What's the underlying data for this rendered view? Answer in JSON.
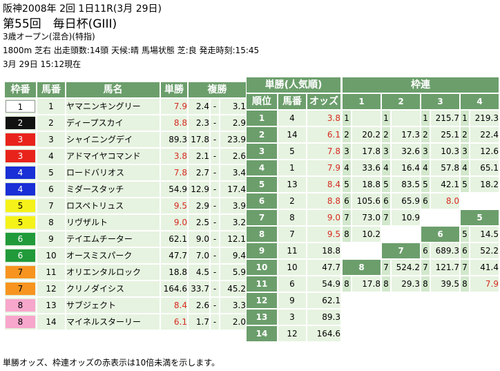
{
  "header": {
    "line1": "阪神2008年 2回 1日11R(3月 29日)",
    "line2": "第55回　毎日杯(GIII)",
    "line3": "3歳オープン(混合)(特指)",
    "line4": "1800m 芝右 出走頭数:14頭 天候:晴 馬場状態 芝:良 発走時刻:15:45",
    "line5": "3月 29日 15:12現在"
  },
  "main_table": {
    "headers": [
      "枠番",
      "馬番",
      "馬名",
      "単勝",
      "複勝"
    ],
    "rows": [
      {
        "waku": "1",
        "uma": "1",
        "name": "ヤマニンキングリー",
        "win": "7.9",
        "win_red": true,
        "plc_lo": "2.4",
        "sep": "-",
        "plc_hi": "3.1"
      },
      {
        "waku": "2",
        "uma": "2",
        "name": "ディープスカイ",
        "win": "8.8",
        "win_red": true,
        "plc_lo": "2.3",
        "sep": "-",
        "plc_hi": "2.9"
      },
      {
        "waku": "3",
        "uma": "3",
        "name": "シャイニングデイ",
        "win": "89.3",
        "win_red": false,
        "plc_lo": "17.8",
        "sep": "-",
        "plc_hi": "23.9"
      },
      {
        "waku": "3",
        "uma": "4",
        "name": "アドマイヤコマンド",
        "win": "3.8",
        "win_red": true,
        "plc_lo": "2.1",
        "sep": "-",
        "plc_hi": "2.6"
      },
      {
        "waku": "4",
        "uma": "5",
        "name": "ロードバリオス",
        "win": "7.8",
        "win_red": true,
        "plc_lo": "2.7",
        "sep": "-",
        "plc_hi": "3.4"
      },
      {
        "waku": "4",
        "uma": "6",
        "name": "ミダースタッチ",
        "win": "54.9",
        "win_red": false,
        "plc_lo": "12.9",
        "sep": "-",
        "plc_hi": "17.4"
      },
      {
        "waku": "5",
        "uma": "7",
        "name": "ロスペトリュス",
        "win": "9.5",
        "win_red": true,
        "plc_lo": "2.9",
        "sep": "-",
        "plc_hi": "3.9"
      },
      {
        "waku": "5",
        "uma": "8",
        "name": "リヴザルト",
        "win": "9.0",
        "win_red": true,
        "plc_lo": "2.5",
        "sep": "-",
        "plc_hi": "3.2"
      },
      {
        "waku": "6",
        "uma": "9",
        "name": "テイエムチーター",
        "win": "62.1",
        "win_red": false,
        "plc_lo": "9.0",
        "sep": "-",
        "plc_hi": "12.1"
      },
      {
        "waku": "6",
        "uma": "10",
        "name": "オースミスパーク",
        "win": "47.7",
        "win_red": false,
        "plc_lo": "7.0",
        "sep": "-",
        "plc_hi": "9.4"
      },
      {
        "waku": "7",
        "uma": "11",
        "name": "オリエンタルロック",
        "win": "18.8",
        "win_red": false,
        "plc_lo": "4.5",
        "sep": "-",
        "plc_hi": "5.9"
      },
      {
        "waku": "7",
        "uma": "12",
        "name": "クリノダイシス",
        "win": "164.6",
        "win_red": false,
        "plc_lo": "33.7",
        "sep": "-",
        "plc_hi": "45.2"
      },
      {
        "waku": "8",
        "uma": "13",
        "name": "サブジェクト",
        "win": "8.4",
        "win_red": true,
        "plc_lo": "2.6",
        "sep": "-",
        "plc_hi": "3.3"
      },
      {
        "waku": "8",
        "uma": "14",
        "name": "マイネルスターリー",
        "win": "6.1",
        "win_red": true,
        "plc_lo": "1.7",
        "sep": "-",
        "plc_hi": "2.0"
      }
    ]
  },
  "waku_colors": {
    "1": {
      "bg": "#ffffff",
      "fg": "#000000"
    },
    "2": {
      "bg": "#111111",
      "fg": "#ffffff"
    },
    "3": {
      "bg": "#e8231c",
      "fg": "#ffffff"
    },
    "4": {
      "bg": "#1a2fd6",
      "fg": "#ffffff"
    },
    "5": {
      "bg": "#f5f21a",
      "fg": "#000000"
    },
    "6": {
      "bg": "#219a3a",
      "fg": "#ffffff"
    },
    "7": {
      "bg": "#f79420",
      "fg": "#000000"
    },
    "8": {
      "bg": "#f7a6cc",
      "fg": "#000000"
    }
  },
  "pop_table": {
    "title": "単勝(人気順)",
    "headers": [
      "順位",
      "馬番",
      "オッズ"
    ],
    "rows": [
      {
        "rank": "1",
        "uma": "4",
        "odds": "3.8",
        "red": true
      },
      {
        "rank": "2",
        "uma": "14",
        "odds": "6.1",
        "red": true
      },
      {
        "rank": "3",
        "uma": "5",
        "odds": "7.8",
        "red": true
      },
      {
        "rank": "4",
        "uma": "1",
        "odds": "7.9",
        "red": true
      },
      {
        "rank": "5",
        "uma": "13",
        "odds": "8.4",
        "red": true
      },
      {
        "rank": "6",
        "uma": "2",
        "odds": "8.8",
        "red": true
      },
      {
        "rank": "7",
        "uma": "8",
        "odds": "9.0",
        "red": true
      },
      {
        "rank": "8",
        "uma": "7",
        "odds": "9.5",
        "red": true
      },
      {
        "rank": "9",
        "uma": "11",
        "odds": "18.8",
        "red": false
      },
      {
        "rank": "10",
        "uma": "10",
        "odds": "47.7",
        "red": false
      },
      {
        "rank": "11",
        "uma": "6",
        "odds": "54.9",
        "red": false
      },
      {
        "rank": "12",
        "uma": "9",
        "odds": "62.1",
        "red": false
      },
      {
        "rank": "13",
        "uma": "3",
        "odds": "89.3",
        "red": false
      },
      {
        "rank": "14",
        "uma": "12",
        "odds": "164.6",
        "red": false
      }
    ]
  },
  "wakuren": {
    "title": "枠連",
    "rows": [
      [
        {
          "t": "dk",
          "s": 2,
          "v": "1"
        },
        {
          "t": "dk",
          "s": 2,
          "v": "2"
        },
        {
          "t": "dk",
          "s": 2,
          "v": "3"
        },
        {
          "t": "dk",
          "s": 2,
          "v": "4"
        }
      ],
      [
        {
          "t": "wk",
          "v": "1"
        },
        {
          "t": "c",
          "v": ""
        },
        {
          "t": "wk",
          "v": "1"
        },
        {
          "t": "c",
          "v": ""
        },
        {
          "t": "wk",
          "v": "1"
        },
        {
          "t": "c",
          "v": "215.7"
        },
        {
          "t": "wk",
          "v": "1"
        },
        {
          "t": "c",
          "v": "219.3"
        }
      ],
      [
        {
          "t": "wk",
          "v": "2"
        },
        {
          "t": "c",
          "v": "20.2"
        },
        {
          "t": "wk",
          "v": "2"
        },
        {
          "t": "c",
          "v": "17.3"
        },
        {
          "t": "wk",
          "v": "2"
        },
        {
          "t": "c",
          "v": "25.1"
        },
        {
          "t": "wk",
          "v": "2"
        },
        {
          "t": "c",
          "v": "22.4"
        }
      ],
      [
        {
          "t": "wk",
          "v": "3"
        },
        {
          "t": "c",
          "v": "17.8"
        },
        {
          "t": "wk",
          "v": "3"
        },
        {
          "t": "c",
          "v": "32.6"
        },
        {
          "t": "wk",
          "v": "3"
        },
        {
          "t": "c",
          "v": "10.3"
        },
        {
          "t": "wk",
          "v": "3"
        },
        {
          "t": "c",
          "v": "12.6"
        }
      ],
      [
        {
          "t": "wk",
          "v": "4"
        },
        {
          "t": "c",
          "v": "33.6"
        },
        {
          "t": "wk",
          "v": "4"
        },
        {
          "t": "c",
          "v": "16.4"
        },
        {
          "t": "wk",
          "v": "4"
        },
        {
          "t": "c",
          "v": "57.8"
        },
        {
          "t": "wk",
          "v": "4"
        },
        {
          "t": "c",
          "v": "65.1"
        }
      ],
      [
        {
          "t": "wk",
          "v": "5"
        },
        {
          "t": "c",
          "v": "18.8"
        },
        {
          "t": "wk",
          "v": "5"
        },
        {
          "t": "c",
          "v": "83.5"
        },
        {
          "t": "wk",
          "v": "5"
        },
        {
          "t": "c",
          "v": "42.1"
        },
        {
          "t": "wk",
          "v": "5"
        },
        {
          "t": "c",
          "v": "18.2"
        }
      ],
      [
        {
          "t": "wk",
          "v": "6"
        },
        {
          "t": "c",
          "v": "105.6"
        },
        {
          "t": "wk",
          "v": "6"
        },
        {
          "t": "c",
          "v": "65.9"
        },
        {
          "t": "wk",
          "v": "6"
        },
        {
          "t": "c",
          "v": "8.0",
          "red": true
        },
        {
          "t": "e",
          "s": 2,
          "v": ""
        }
      ],
      [
        {
          "t": "wk",
          "v": "7"
        },
        {
          "t": "c",
          "v": "73.0"
        },
        {
          "t": "wk",
          "v": "7"
        },
        {
          "t": "c",
          "v": "10.9"
        },
        {
          "t": "e",
          "s": 2,
          "v": ""
        },
        {
          "t": "dk",
          "s": 2,
          "v": "5"
        }
      ],
      [
        {
          "t": "wk",
          "v": "8"
        },
        {
          "t": "c",
          "v": "10.2"
        },
        {
          "t": "e",
          "s": 2,
          "v": ""
        },
        {
          "t": "dk",
          "s": 2,
          "v": "6"
        },
        {
          "t": "wk",
          "v": "5"
        },
        {
          "t": "c",
          "v": "14.5"
        }
      ],
      [
        {
          "t": "e",
          "s": 2,
          "v": ""
        },
        {
          "t": "dk",
          "s": 2,
          "v": "7"
        },
        {
          "t": "wk",
          "v": "6"
        },
        {
          "t": "c",
          "v": "689.3"
        },
        {
          "t": "wk",
          "v": "6"
        },
        {
          "t": "c",
          "v": "52.2"
        }
      ],
      [
        {
          "t": "dk",
          "s": 2,
          "v": "8"
        },
        {
          "t": "wk",
          "v": "7"
        },
        {
          "t": "c",
          "v": "524.2"
        },
        {
          "t": "wk",
          "v": "7"
        },
        {
          "t": "c",
          "v": "121.7"
        },
        {
          "t": "wk",
          "v": "7"
        },
        {
          "t": "c",
          "v": "41.4"
        }
      ],
      [
        {
          "t": "wk",
          "v": "8"
        },
        {
          "t": "c",
          "v": "17.8"
        },
        {
          "t": "wk",
          "v": "8"
        },
        {
          "t": "c",
          "v": "29.3"
        },
        {
          "t": "wk",
          "v": "8"
        },
        {
          "t": "c",
          "v": "39.5"
        },
        {
          "t": "wk",
          "v": "8"
        },
        {
          "t": "c",
          "v": "7.9",
          "red": true
        }
      ]
    ]
  },
  "footer": "単勝オッズ、枠連オッズの赤表示は10倍未満を示します。"
}
